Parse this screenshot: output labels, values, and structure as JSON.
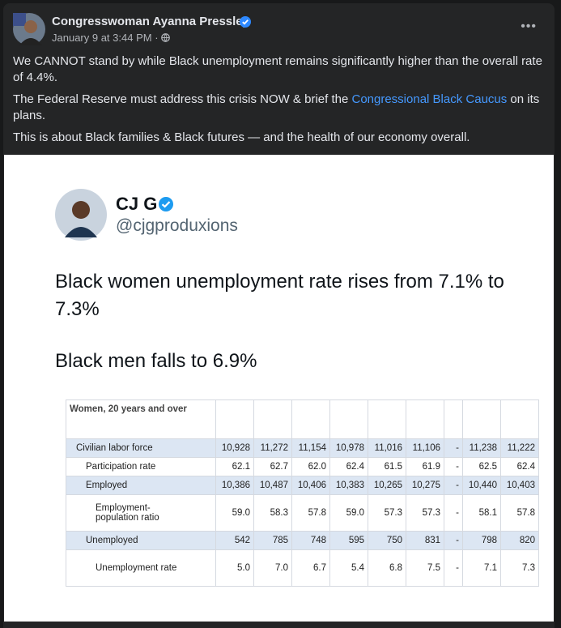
{
  "post": {
    "author": "Congresswoman Ayanna Pressley",
    "timestamp": "January 9 at 3:44 PM",
    "paragraphs": [
      [
        "We CANNOT stand by while Black unemployment remains significantly higher than the overall rate of 4.4%."
      ],
      [
        "The Federal Reserve must address this crisis NOW & brief the ",
        "Congressional Black Caucus",
        " on its plans."
      ],
      [
        "This is about Black families & Black futures — and the health of our economy overall."
      ]
    ]
  },
  "tweet": {
    "name": "CJ G",
    "handle": "@cjgproduxions",
    "lines": [
      "Black women unemployment rate rises from 7.1% to 7.3%",
      "Black men falls to 6.9%"
    ]
  },
  "table": {
    "caption": "Women, 20 years and over",
    "rows": [
      [
        "Civilian labor force",
        "10,928",
        "11,272",
        "11,154",
        "10,978",
        "11,016",
        "11,106",
        "-",
        "11,238",
        "11,222"
      ],
      [
        "Participation rate",
        "62.1",
        "62.7",
        "62.0",
        "62.4",
        "61.5",
        "61.9",
        "-",
        "62.5",
        "62.4"
      ],
      [
        "Employed",
        "10,386",
        "10,487",
        "10,406",
        "10,383",
        "10,265",
        "10,275",
        "-",
        "10,440",
        "10,403"
      ],
      [
        "Employment-population ratio",
        "59.0",
        "58.3",
        "57.8",
        "59.0",
        "57.3",
        "57.3",
        "-",
        "58.1",
        "57.8"
      ],
      [
        "Unemployed",
        "542",
        "785",
        "748",
        "595",
        "750",
        "831",
        "-",
        "798",
        "820"
      ],
      [
        "Unemployment rate",
        "5.0",
        "7.0",
        "6.7",
        "5.4",
        "6.8",
        "7.5",
        "-",
        "7.1",
        "7.3"
      ]
    ]
  }
}
